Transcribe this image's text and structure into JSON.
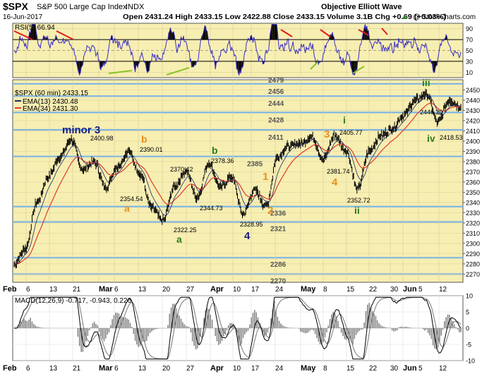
{
  "header": {
    "symbol": "$SPX",
    "name": "S&P 500 Large Cap Index",
    "exchange": "INDX",
    "date": "16-Jun-2017",
    "ohlc_text": "Open 2431.24  High 2433.15  Low 2422.88  Close 2433.15  Volume 3.1B  Chg +0.69 (+0.03%)",
    "title": "Objective Elliott Wave",
    "copyright": "@ StockCharts.com",
    "change_arrow": "▲"
  },
  "colors": {
    "panel_bg": "#f7eeb2",
    "rsi_line": "#3a2ec8",
    "ema13": "#1b2a6b",
    "ema34": "#e23a2a",
    "hline": "#7fb6e3",
    "orange": "#e8901a",
    "green": "#2e7d1a",
    "navy": "#1a1f80",
    "red_trend": "#e01a1a",
    "green_trend": "#88c426"
  },
  "chart_data": {
    "type": "line",
    "title": "$SPX (60 min) 2433.15",
    "x_axis": {
      "labels": [
        "Feb",
        "6",
        "13",
        "21",
        "Mar",
        "6",
        "13",
        "20",
        "27",
        "Apr",
        "10",
        "17",
        "24",
        "May",
        "8",
        "15",
        "22",
        "30",
        "Jun",
        "5",
        "12"
      ]
    },
    "price_panel": {
      "ylim": [
        2262,
        2460
      ],
      "y_ticks": [
        2270,
        2280,
        2290,
        2300,
        2310,
        2320,
        2330,
        2340,
        2350,
        2360,
        2370,
        2380,
        2390,
        2400,
        2410,
        2420,
        2430,
        2440,
        2450
      ],
      "legend": [
        {
          "name": "EMA(13) 2430.48",
          "color": "#1b2a6b"
        },
        {
          "name": "EMA(34) 2431.30",
          "color": "#e23a2a"
        }
      ],
      "levels": [
        2479,
        2456,
        2444,
        2428,
        2411,
        2385,
        2336,
        2321,
        2286,
        2270
      ],
      "price_anchors": [
        {
          "label": "Feb",
          "value": 2280
        },
        {
          "label": "6",
          "value": 2295
        },
        {
          "label": "13",
          "value": 2340
        },
        {
          "label": "21",
          "value": 2365
        },
        {
          "label": "",
          "value": 2385
        },
        {
          "label": "Mar",
          "value": 2400.98
        },
        {
          "label": "",
          "value": 2372
        },
        {
          "label": "6",
          "value": 2380
        },
        {
          "label": "",
          "value": 2354.54
        },
        {
          "label": "13",
          "value": 2375
        },
        {
          "label": "",
          "value": 2390.01
        },
        {
          "label": "20",
          "value": 2368
        },
        {
          "label": "",
          "value": 2335
        },
        {
          "label": "27",
          "value": 2322.25
        },
        {
          "label": "",
          "value": 2355
        },
        {
          "label": "",
          "value": 2370.42
        },
        {
          "label": "Apr",
          "value": 2344.73
        },
        {
          "label": "",
          "value": 2378.36
        },
        {
          "label": "10",
          "value": 2355
        },
        {
          "label": "",
          "value": 2365
        },
        {
          "label": "17",
          "value": 2328.95
        },
        {
          "label": "",
          "value": 2352
        },
        {
          "label": "24",
          "value": 2336
        },
        {
          "label": "",
          "value": 2385
        },
        {
          "label": "May",
          "value": 2395
        },
        {
          "label": "",
          "value": 2398
        },
        {
          "label": "8",
          "value": 2404
        },
        {
          "label": "",
          "value": 2381.74
        },
        {
          "label": "15",
          "value": 2405.77
        },
        {
          "label": "",
          "value": 2390
        },
        {
          "label": "22",
          "value": 2352.72
        },
        {
          "label": "",
          "value": 2390
        },
        {
          "label": "",
          "value": 2405
        },
        {
          "label": "30",
          "value": 2412
        },
        {
          "label": "Jun",
          "value": 2425
        },
        {
          "label": "5",
          "value": 2440
        },
        {
          "label": "",
          "value": 2446.2
        },
        {
          "label": "12",
          "value": 2418.53
        },
        {
          "label": "",
          "value": 2440
        },
        {
          "label": "",
          "value": 2433.15
        }
      ]
    },
    "rsi_panel": {
      "label": "RSI(5) 66.94",
      "ylim": [
        0,
        100
      ],
      "y_ticks": [
        10,
        30,
        50,
        70,
        90
      ],
      "overbought": 70,
      "oversold": 30
    },
    "macd_panel": {
      "label": "MACD(12,26,9) -0.717, -0.943, 0.226",
      "ylim": [
        -10,
        10
      ],
      "y_ticks": [
        -10,
        -5,
        0,
        5,
        10
      ]
    }
  },
  "price_labels": {
    "p2400": "2400.98",
    "p2390": "2390.01",
    "p2354": "2354.54",
    "p2322": "2322.25",
    "p2370": "2370.42",
    "p2344": "2344.73",
    "p2378": "2378.36",
    "p2328": "2328.95",
    "p2381": "2381.74",
    "p2405": "2405.77",
    "p2352": "2352.72",
    "p2446": "2446.20",
    "p2418": "2418.53"
  },
  "wave_labels": {
    "minor3": "minor 3",
    "b_orange": "b",
    "a_orange": "a",
    "a_green": "a",
    "b_green": "b",
    "four_navy": "4",
    "one_orange": "1",
    "two_orange": "2",
    "three_orange": "3",
    "four_orange": "4",
    "i_green": "i",
    "ii_green": "ii",
    "iii_green": "iii",
    "iv_green": "iv"
  }
}
